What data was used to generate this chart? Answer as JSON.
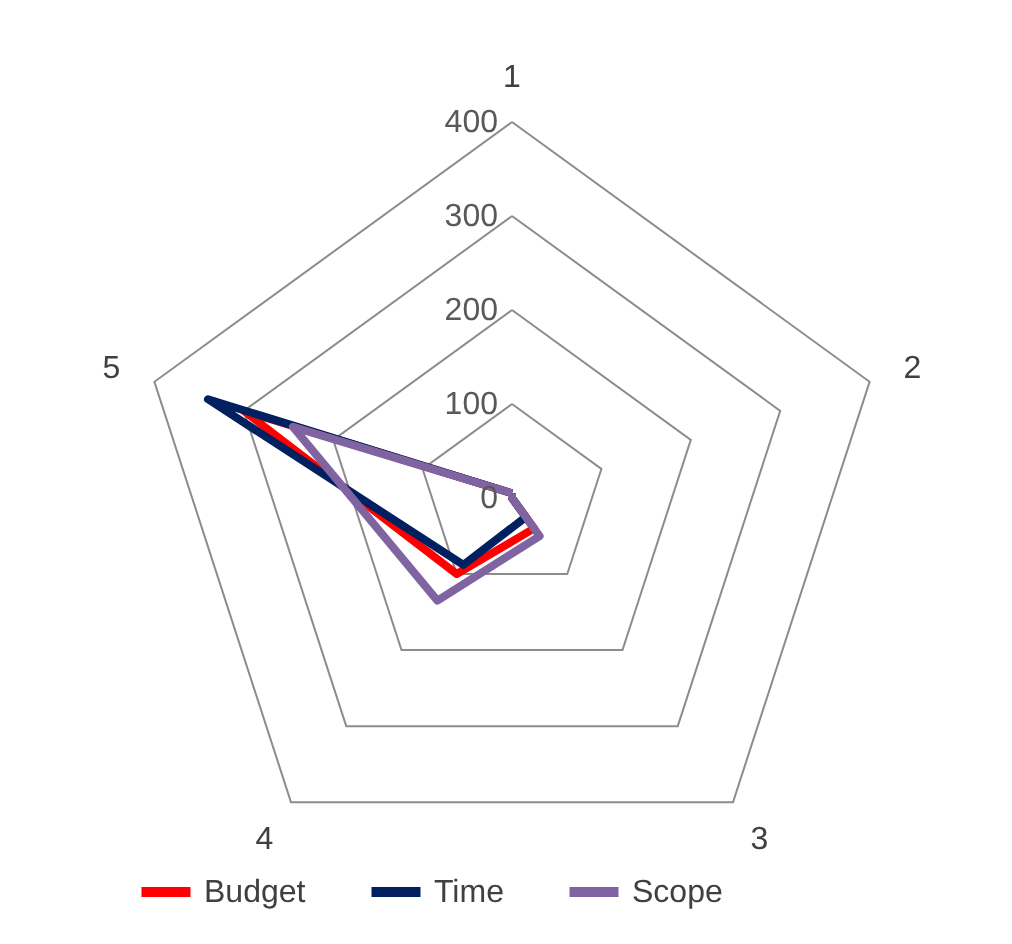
{
  "chart_data": {
    "type": "radar",
    "categories": [
      "1",
      "2",
      "3",
      "4",
      "5"
    ],
    "series": [
      {
        "name": "Budget",
        "color": "#ff0000",
        "values": [
          5,
          0,
          40,
          100,
          300
        ]
      },
      {
        "name": "Time",
        "color": "#002060",
        "values": [
          5,
          0,
          25,
          88,
          340
        ]
      },
      {
        "name": "Scope",
        "color": "#8064a2",
        "values": [
          5,
          0,
          50,
          135,
          245
        ]
      }
    ],
    "ylim": [
      0,
      400
    ],
    "yticks": [
      0,
      100,
      200,
      300,
      400
    ],
    "grid": true,
    "legend": "bottom",
    "marker": "none"
  }
}
